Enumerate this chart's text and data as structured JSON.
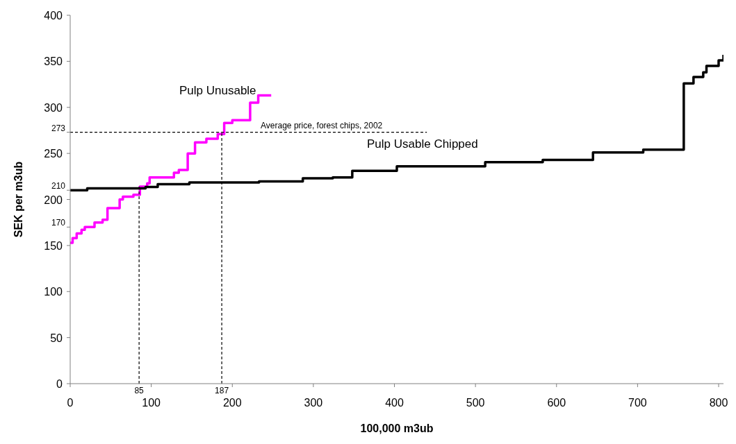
{
  "chart_data": {
    "type": "step",
    "xlabel": "100,000 m3ub",
    "ylabel": "SEK per m3ub",
    "xlim": [
      0,
      806
    ],
    "ylim": [
      0,
      400
    ],
    "xticks": [
      0,
      100,
      200,
      300,
      400,
      500,
      600,
      700,
      800
    ],
    "yticks": [
      0,
      50,
      100,
      150,
      200,
      250,
      300,
      350,
      400,
      {
        "value": 170,
        "label": "170"
      },
      {
        "value": 210,
        "label": "210"
      },
      {
        "value": 273,
        "label": "273"
      }
    ],
    "marker": "none",
    "annotations": [
      {
        "text": "Average price, forest chips, 2002",
        "x": 235,
        "y": 273
      },
      {
        "text": "85",
        "x": 85,
        "y": 0
      },
      {
        "text": "187",
        "x": 187,
        "y": 0
      }
    ],
    "series": [
      {
        "name": "Pulp Unusable",
        "color": "#ff00ff",
        "x": [
          0,
          3,
          8,
          14,
          18,
          30,
          40,
          46,
          61,
          65,
          78,
          86,
          95,
          98,
          128,
          134,
          145,
          154,
          168,
          182,
          190,
          200,
          222,
          232,
          248
        ],
        "values": [
          153,
          158,
          163,
          167,
          170,
          175,
          178,
          190.5,
          200,
          203,
          205,
          214,
          217.5,
          224,
          229,
          232,
          250,
          262,
          266,
          271,
          283,
          286,
          305,
          313,
          313
        ]
      },
      {
        "name": "Pulp Usable Chipped",
        "color": "#000000",
        "x": [
          0,
          21,
          93,
          108,
          147,
          233,
          287,
          324,
          348,
          403,
          512,
          583,
          645,
          707,
          757,
          769,
          781,
          785,
          800,
          806
        ],
        "values": [
          210,
          212,
          213.5,
          216.5,
          218.5,
          219.5,
          223,
          224,
          231,
          236,
          240.5,
          243,
          251,
          254,
          326,
          333,
          338,
          345,
          351,
          357
        ]
      },
      {
        "type": "line",
        "color": "#000000",
        "line_style": "dashed",
        "x": [
          0,
          440
        ],
        "values": [
          273,
          273
        ]
      },
      {
        "type": "line",
        "color": "#000000",
        "line_style": "dashed",
        "x": [
          85,
          85
        ],
        "values": [
          0,
          214
        ]
      },
      {
        "type": "line",
        "color": "#000000",
        "line_style": "dashed",
        "x": [
          187,
          187
        ],
        "values": [
          0,
          273
        ]
      }
    ]
  }
}
